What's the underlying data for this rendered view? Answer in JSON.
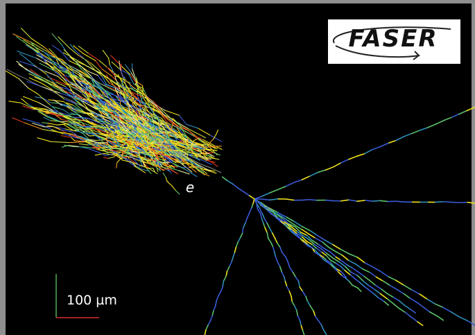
{
  "logo": {
    "text": "FASER"
  },
  "particle_label": "e",
  "scale_bar": {
    "label": "100 µm"
  }
}
